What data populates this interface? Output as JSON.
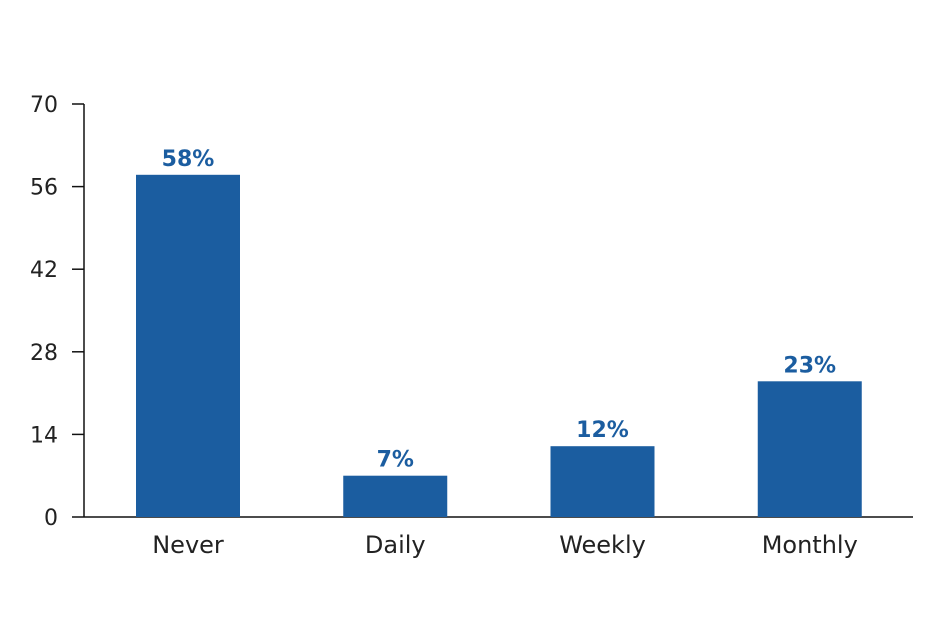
{
  "chart_data": {
    "type": "bar",
    "categories": [
      "Never",
      "Daily",
      "Weekly",
      "Monthly"
    ],
    "values": [
      58,
      7,
      12,
      23
    ],
    "data_labels": [
      "58%",
      "7%",
      "12%",
      "23%"
    ],
    "ylim": [
      0,
      70
    ],
    "yticks": [
      0,
      14,
      28,
      42,
      56,
      70
    ],
    "grid": false,
    "bar_color": "#1b5da0",
    "label_color": "#1b5da0"
  }
}
